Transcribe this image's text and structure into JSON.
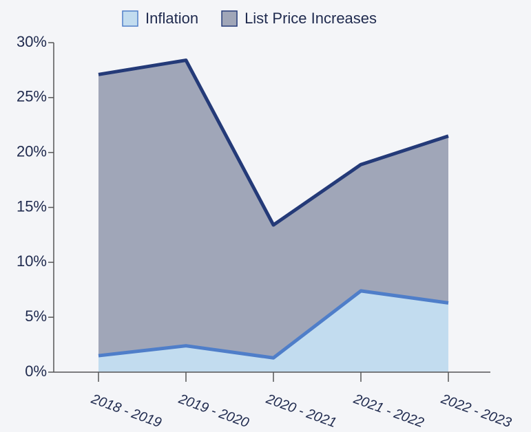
{
  "chart_data": {
    "type": "area",
    "categories": [
      "2018 - 2019",
      "2019 - 2020",
      "2020 - 2021",
      "2021 - 2022",
      "2022 - 2023"
    ],
    "series": [
      {
        "name": "List Price Increases",
        "color": "#243a78",
        "fill": "#a0a6b8",
        "values": [
          27.1,
          28.4,
          13.4,
          18.9,
          21.5
        ]
      },
      {
        "name": "Inflation",
        "color": "#4f7ec9",
        "fill": "#c2dcef",
        "values": [
          1.5,
          2.4,
          1.3,
          7.4,
          6.3
        ]
      }
    ],
    "legend_order": [
      1,
      0
    ],
    "ylim": [
      0,
      30
    ],
    "yticks": [
      {
        "value": 0,
        "label": "0%"
      },
      {
        "value": 5,
        "label": "5%"
      },
      {
        "value": 10,
        "label": "10%"
      },
      {
        "value": 15,
        "label": "15%"
      },
      {
        "value": 20,
        "label": "20%"
      },
      {
        "value": 25,
        "label": "25%"
      },
      {
        "value": 30,
        "label": "30%"
      }
    ],
    "legend": "top"
  }
}
